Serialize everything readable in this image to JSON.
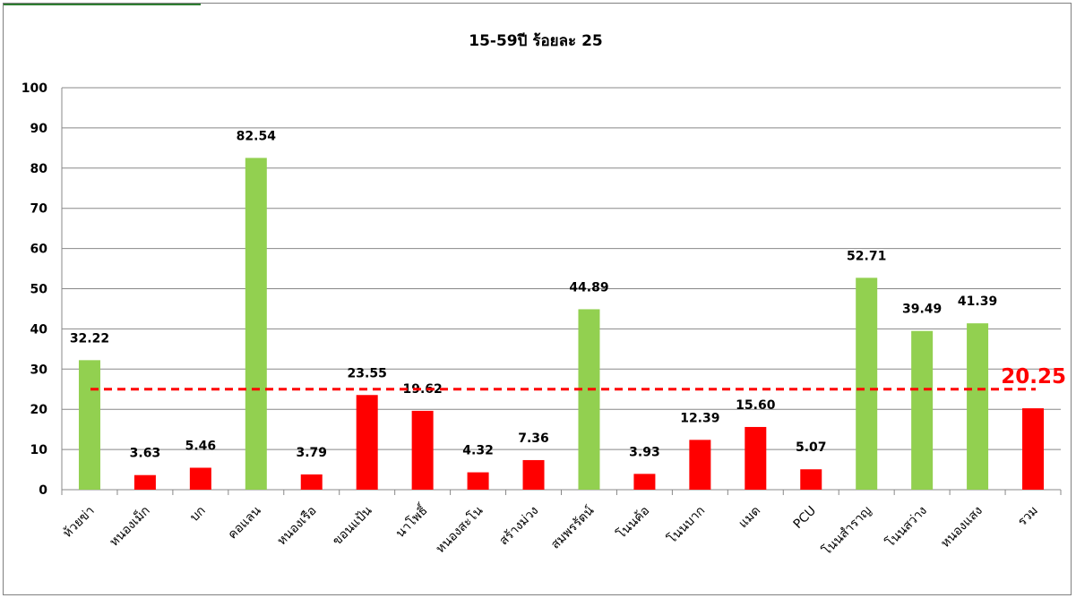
{
  "chart_data": {
    "type": "bar",
    "title": "15-59ปี ร้อยละ 25",
    "xlabel": "",
    "ylabel": "",
    "ylim": [
      0,
      100
    ],
    "yticks": [
      0,
      10,
      20,
      30,
      40,
      50,
      60,
      70,
      80,
      90,
      100
    ],
    "grid": true,
    "categories": [
      "ห้วยข่า",
      "หนองเม็ก",
      "บก",
      "คอแลน",
      "หนองเรือ",
      "ขอนแป้น",
      "นาโพธิ์",
      "หนองสะโน",
      "สร้างม่วง",
      "สมพรรัตน์",
      "โนนค้อ",
      "โนนบาก",
      "แมด",
      "PCU",
      "โนนสำราญ",
      "โนนสว่าง",
      "หนองแสง",
      "รวม"
    ],
    "values": [
      32.22,
      3.63,
      5.46,
      82.54,
      3.79,
      23.55,
      19.62,
      4.32,
      7.36,
      44.89,
      3.93,
      12.39,
      15.6,
      5.07,
      52.71,
      39.49,
      41.39,
      20.25
    ],
    "data_labels": [
      "32.22",
      "3.63",
      "5.46",
      "82.54",
      "3.79",
      "23.55",
      "19.62",
      "4.32",
      "7.36",
      "44.89",
      "3.93",
      "12.39",
      "15.60",
      "5.07",
      "52.71",
      "39.49",
      "41.39",
      ""
    ],
    "bar_colors": [
      "#92d050",
      "#ff0000",
      "#ff0000",
      "#92d050",
      "#ff0000",
      "#ff0000",
      "#ff0000",
      "#ff0000",
      "#ff0000",
      "#92d050",
      "#ff0000",
      "#ff0000",
      "#ff0000",
      "#ff0000",
      "#92d050",
      "#92d050",
      "#92d050",
      "#ff0000"
    ],
    "target_line": {
      "value": 25,
      "color": "#ff0000",
      "style": "dashed"
    },
    "total_annotation": {
      "text": "20.25",
      "color": "#ff0000"
    }
  }
}
